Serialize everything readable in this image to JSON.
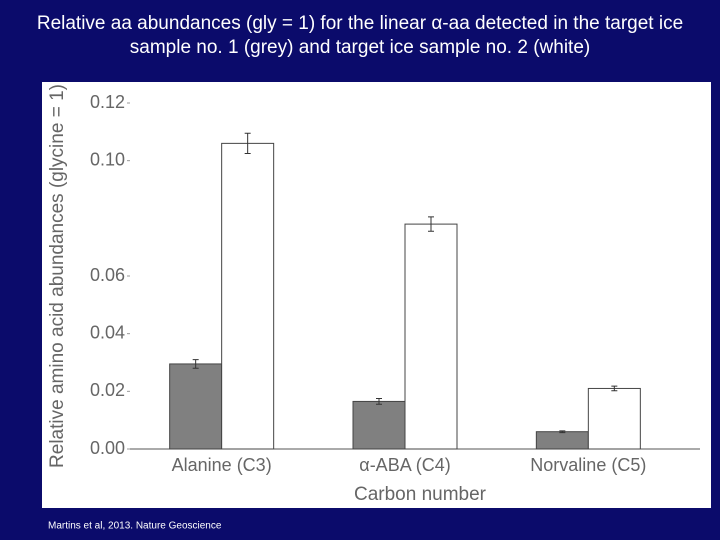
{
  "chart_data": {
    "type": "bar",
    "title": "Relative aa abundances (gly = 1) for the linear α-aa detected in the target ice sample no. 1 (grey) and target ice sample no. 2 (white)",
    "categories": [
      "Alanine (C3)",
      "α-ABA (C4)",
      "Norvaline (C5)"
    ],
    "series": [
      {
        "color": "#808080",
        "values": [
          0.0295,
          0.0165,
          0.006
        ],
        "errors": [
          0.0015,
          0.001,
          0.0003
        ]
      },
      {
        "color": "#ffffff",
        "values": [
          0.106,
          0.078,
          0.021
        ],
        "errors": [
          0.0035,
          0.0025,
          0.0008
        ]
      }
    ],
    "x_label": "Carbon number",
    "y_label": "Relative amino acid abundances (glycine = 1)",
    "ylim": [
      0,
      0.12
    ],
    "yticks": [
      {
        "value": 0,
        "label": "0.00"
      },
      0.02,
      0.04,
      0.06,
      {
        "value": 0.1,
        "label": "0.10"
      },
      0.12
    ],
    "source": "Martins et al, 2013. Nature Geoscience"
  }
}
